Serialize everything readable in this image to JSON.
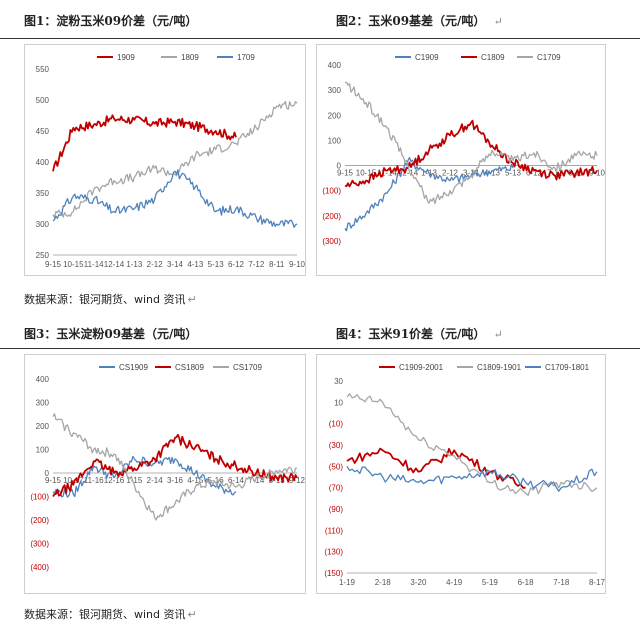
{
  "titles": {
    "fig1": "图1：淀粉玉米09价差（元/吨）",
    "fig2": "图2：玉米09基差（元/吨）",
    "fig3": "图3：玉米淀粉09基差（元/吨）",
    "fig4": "图4：玉米91价差（元/吨）",
    "return_mark": "↵"
  },
  "source": {
    "text": "数据来源：银河期货、wind 资讯",
    "return_mark": "↵"
  },
  "colors": {
    "red": "#c00000",
    "gray": "#a6a6a6",
    "blue": "#4f81bd"
  },
  "chart_data": [
    {
      "id": "fig1",
      "type": "line",
      "categories": [
        "9-15",
        "10-15",
        "11-14",
        "12-14",
        "1-13",
        "2-12",
        "3-14",
        "4-13",
        "5-13",
        "6-12",
        "7-12",
        "8-11",
        "9-10"
      ],
      "ylim": [
        250,
        550
      ],
      "yticks": [
        250,
        300,
        350,
        400,
        450,
        500,
        550
      ],
      "ytick_labels": [
        "250",
        "300",
        "350",
        "400",
        "450",
        "500",
        "550"
      ],
      "legend_position": "top",
      "series": [
        {
          "name": "1909",
          "color": "#c00000",
          "values": [
            385,
            455,
            460,
            470,
            468,
            462,
            465,
            458,
            450,
            440,
            null,
            null,
            null
          ]
        },
        {
          "name": "1809",
          "color": "#a6a6a6",
          "values": [
            315,
            320,
            355,
            370,
            375,
            390,
            380,
            410,
            420,
            430,
            455,
            490,
            495
          ]
        },
        {
          "name": "1709",
          "color": "#4f81bd",
          "values": [
            305,
            345,
            340,
            320,
            325,
            340,
            385,
            360,
            320,
            325,
            310,
            300,
            300
          ]
        }
      ]
    },
    {
      "id": "fig2",
      "type": "line",
      "categories": [
        "9-15",
        "10-15",
        "11-14",
        "12-14",
        "1-13",
        "2-12",
        "3-14",
        "4-13",
        "5-13",
        "6-12",
        "7-12",
        "8-11",
        "9-10"
      ],
      "ylim": [
        -300,
        400
      ],
      "yticks": [
        -300,
        -200,
        -100,
        0,
        100,
        200,
        300,
        400
      ],
      "ytick_labels": [
        "(300)",
        "(200)",
        "(100)",
        "0",
        "100",
        "200",
        "300",
        "400"
      ],
      "legend_position": "top",
      "series": [
        {
          "name": "C1909",
          "color": "#4f81bd",
          "values": [
            -250,
            -190,
            -110,
            20,
            -30,
            -60,
            -40,
            -20,
            -10,
            null,
            null,
            null,
            null
          ]
        },
        {
          "name": "C1809",
          "color": "#c00000",
          "values": [
            -80,
            -60,
            -20,
            -10,
            60,
            120,
            170,
            80,
            10,
            -20,
            -40,
            -30,
            -20
          ]
        },
        {
          "name": "C1709",
          "color": "#a6a6a6",
          "values": [
            330,
            250,
            150,
            0,
            -150,
            -100,
            -40,
            60,
            20,
            50,
            -10,
            40,
            40
          ]
        }
      ]
    },
    {
      "id": "fig3",
      "type": "line",
      "categories": [
        "9-15",
        "10-17",
        "11-16",
        "12-16",
        "1-15",
        "2-14",
        "3-16",
        "4-15",
        "5-16",
        "6-14",
        "7-14",
        "8-13",
        "9-12"
      ],
      "ylim": [
        -400,
        400
      ],
      "yticks": [
        -400,
        -300,
        -200,
        -100,
        0,
        100,
        200,
        300,
        400
      ],
      "ytick_labels": [
        "(400)",
        "(300)",
        "(200)",
        "(100)",
        "0",
        "100",
        "200",
        "300",
        "400"
      ],
      "legend_position": "top",
      "series": [
        {
          "name": "CS1909",
          "color": "#4f81bd",
          "values": [
            -80,
            -90,
            30,
            -20,
            60,
            40,
            60,
            0,
            -60,
            -80,
            null,
            null,
            null
          ]
        },
        {
          "name": "CS1809",
          "color": "#c00000",
          "values": [
            -100,
            -50,
            50,
            0,
            20,
            60,
            150,
            110,
            60,
            30,
            0,
            -20,
            -20
          ]
        },
        {
          "name": "CS1709",
          "color": "#a6a6a6",
          "values": [
            240,
            170,
            100,
            80,
            -50,
            -190,
            -130,
            -60,
            -40,
            -60,
            -20,
            10,
            20
          ]
        }
      ]
    },
    {
      "id": "fig4",
      "type": "line",
      "categories": [
        "1-19",
        "2-18",
        "3-20",
        "4-19",
        "5-19",
        "6-18",
        "7-18",
        "8-17"
      ],
      "ylim": [
        -150,
        30
      ],
      "yticks": [
        -150,
        -130,
        -110,
        -90,
        -70,
        -50,
        -30,
        -10,
        10,
        30
      ],
      "ytick_labels": [
        "(150)",
        "(130)",
        "(110)",
        "(90)",
        "(70)",
        "(50)",
        "(30)",
        "(10)",
        "10",
        "30"
      ],
      "legend_position": "top",
      "series": [
        {
          "name": "C1909-2001",
          "color": "#c00000",
          "values": [
            -45,
            -35,
            -55,
            -35,
            -55,
            -70,
            null,
            null
          ]
        },
        {
          "name": "C1809-1901",
          "color": "#a6a6a6",
          "values": [
            15,
            10,
            -25,
            -40,
            -65,
            -75,
            -65,
            -70
          ]
        },
        {
          "name": "C1709-1801",
          "color": "#4f81bd",
          "values": [
            -50,
            -60,
            -65,
            -60,
            -55,
            -65,
            -70,
            -55
          ]
        }
      ]
    }
  ]
}
